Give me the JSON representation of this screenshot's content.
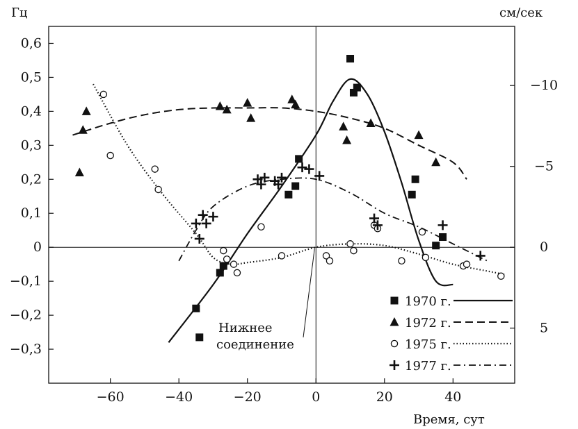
{
  "chart_data": {
    "type": "scatter",
    "xlabel": "Время, сут",
    "ylabel_left": "Гц",
    "ylabel_right": "см/сек",
    "xlim": [
      -78,
      58
    ],
    "ylim_left": [
      -0.4,
      0.65
    ],
    "right_axis": {
      "scale": "inverted-linear",
      "hz_per_unit": -0.0476,
      "ticks": [
        -10,
        -5,
        0,
        5
      ]
    },
    "x_ticks": [
      -60,
      -40,
      -20,
      0,
      20,
      40
    ],
    "y_ticks_left": [
      -0.3,
      -0.2,
      -0.1,
      0,
      0.1,
      0.2,
      0.3,
      0.4,
      0.5,
      0.6
    ],
    "x_tick_labels": [
      "−60",
      "−40",
      "−20",
      "0",
      "20",
      "40"
    ],
    "y_tick_labels_left": [
      "−0,3",
      "−0,2",
      "−0,1",
      "0",
      "0,1",
      "0,2",
      "0,3",
      "0,4",
      "0,5",
      "0,6"
    ],
    "y_tick_labels_right": [
      "−10",
      "−5",
      "0",
      "5"
    ],
    "grid": false,
    "legend_position": "bottom-right",
    "series": [
      {
        "name": "1970 г.",
        "marker": "square",
        "line": "solid",
        "points": [
          [
            -35,
            -0.18
          ],
          [
            -34,
            -0.265
          ],
          [
            -28,
            -0.075
          ],
          [
            -27,
            -0.055
          ],
          [
            -8,
            0.155
          ],
          [
            -6,
            0.18
          ],
          [
            -5,
            0.26
          ],
          [
            10,
            0.555
          ],
          [
            11,
            0.455
          ],
          [
            12,
            0.47
          ],
          [
            28,
            0.155
          ],
          [
            29,
            0.2
          ],
          [
            35,
            0.005
          ],
          [
            37,
            0.03
          ]
        ],
        "curve": [
          [
            -43,
            -0.28
          ],
          [
            -30,
            -0.11
          ],
          [
            -20,
            0.04
          ],
          [
            -10,
            0.18
          ],
          [
            0,
            0.33
          ],
          [
            5,
            0.43
          ],
          [
            10,
            0.495
          ],
          [
            15,
            0.45
          ],
          [
            20,
            0.34
          ],
          [
            25,
            0.19
          ],
          [
            30,
            0.02
          ],
          [
            35,
            -0.1
          ],
          [
            40,
            -0.11
          ]
        ]
      },
      {
        "name": "1972 г.",
        "marker": "triangle",
        "line": "dashed",
        "points": [
          [
            -69,
            0.22
          ],
          [
            -68,
            0.345
          ],
          [
            -67,
            0.4
          ],
          [
            -28,
            0.415
          ],
          [
            -26,
            0.405
          ],
          [
            -20,
            0.425
          ],
          [
            -19,
            0.38
          ],
          [
            -7,
            0.435
          ],
          [
            -6,
            0.42
          ],
          [
            8,
            0.355
          ],
          [
            9,
            0.315
          ],
          [
            16,
            0.365
          ],
          [
            30,
            0.33
          ],
          [
            35,
            0.25
          ]
        ],
        "curve": [
          [
            -71,
            0.33
          ],
          [
            -60,
            0.365
          ],
          [
            -50,
            0.39
          ],
          [
            -40,
            0.405
          ],
          [
            -30,
            0.41
          ],
          [
            -20,
            0.41
          ],
          [
            -10,
            0.41
          ],
          [
            0,
            0.4
          ],
          [
            10,
            0.38
          ],
          [
            20,
            0.35
          ],
          [
            30,
            0.3
          ],
          [
            40,
            0.25
          ],
          [
            44,
            0.2
          ]
        ]
      },
      {
        "name": "1975 г.",
        "marker": "circle",
        "line": "dotted",
        "points": [
          [
            -62,
            0.45
          ],
          [
            -60,
            0.27
          ],
          [
            -47,
            0.23
          ],
          [
            -46,
            0.17
          ],
          [
            -27,
            -0.01
          ],
          [
            -26,
            -0.035
          ],
          [
            -24,
            -0.05
          ],
          [
            -23,
            -0.075
          ],
          [
            -16,
            0.06
          ],
          [
            -10,
            -0.025
          ],
          [
            3,
            -0.025
          ],
          [
            4,
            -0.04
          ],
          [
            10,
            0.01
          ],
          [
            11,
            -0.01
          ],
          [
            17,
            0.065
          ],
          [
            18,
            0.055
          ],
          [
            25,
            -0.04
          ],
          [
            31,
            0.045
          ],
          [
            32,
            -0.03
          ],
          [
            43,
            -0.055
          ],
          [
            44,
            -0.05
          ],
          [
            54,
            -0.085
          ]
        ],
        "curve": [
          [
            -65,
            0.48
          ],
          [
            -55,
            0.3
          ],
          [
            -45,
            0.16
          ],
          [
            -35,
            0.04
          ],
          [
            -30,
            -0.03
          ],
          [
            -25,
            -0.05
          ],
          [
            -20,
            -0.045
          ],
          [
            -10,
            -0.03
          ],
          [
            0,
            0.0
          ],
          [
            10,
            0.01
          ],
          [
            20,
            0.005
          ],
          [
            30,
            -0.02
          ],
          [
            40,
            -0.05
          ],
          [
            50,
            -0.07
          ],
          [
            55,
            -0.08
          ]
        ]
      },
      {
        "name": "1977 г.",
        "marker": "plus",
        "line": "dashdot",
        "points": [
          [
            -35,
            0.07
          ],
          [
            -34,
            0.025
          ],
          [
            -33,
            0.095
          ],
          [
            -32,
            0.07
          ],
          [
            -30,
            0.09
          ],
          [
            -17,
            0.2
          ],
          [
            -16,
            0.185
          ],
          [
            -15,
            0.205
          ],
          [
            -12,
            0.195
          ],
          [
            -11,
            0.185
          ],
          [
            -10,
            0.205
          ],
          [
            -4,
            0.235
          ],
          [
            -2,
            0.23
          ],
          [
            1,
            0.21
          ],
          [
            17,
            0.085
          ],
          [
            18,
            0.065
          ],
          [
            37,
            0.065
          ],
          [
            48,
            -0.025
          ]
        ],
        "curve": [
          [
            -40,
            -0.04
          ],
          [
            -35,
            0.05
          ],
          [
            -30,
            0.12
          ],
          [
            -20,
            0.18
          ],
          [
            -10,
            0.2
          ],
          [
            0,
            0.2
          ],
          [
            10,
            0.16
          ],
          [
            20,
            0.1
          ],
          [
            30,
            0.06
          ],
          [
            40,
            0.01
          ],
          [
            50,
            -0.04
          ]
        ]
      }
    ],
    "annotations": [
      {
        "text": "Нижнее соединение",
        "lines": [
          "Нижнее",
          "соединение"
        ],
        "points_to": [
          0,
          0
        ]
      }
    ]
  }
}
